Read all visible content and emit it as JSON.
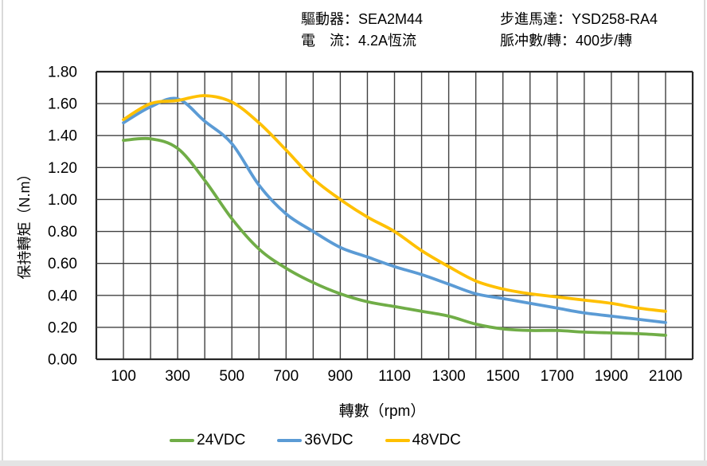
{
  "header": {
    "driver": "驅動器：SEA2M44",
    "current": "電　流：4.2A恆流",
    "motor": "步進馬達：YSD258-RA4",
    "pulse": "脈冲數/轉：400步/轉"
  },
  "chart_data": {
    "type": "line",
    "title": "",
    "xlabel": "轉數（rpm）",
    "ylabel": "保持轉矩（N.m）",
    "xlim": [
      0,
      2200
    ],
    "ylim": [
      0,
      1.8
    ],
    "x_gridline_step": 100,
    "y_gridline_step": 0.2,
    "grid": "on",
    "legend_position": "bottom",
    "x": [
      100,
      200,
      300,
      400,
      500,
      600,
      700,
      800,
      900,
      1000,
      1100,
      1200,
      1300,
      1400,
      1500,
      1600,
      1700,
      1800,
      1900,
      2000,
      2100
    ],
    "x_tick_labels": [
      "100",
      "300",
      "500",
      "700",
      "900",
      "1100",
      "1300",
      "1500",
      "1700",
      "1900",
      "2100"
    ],
    "y_tick_labels": [
      "0.00",
      "0.20",
      "0.40",
      "0.60",
      "0.80",
      "1.00",
      "1.20",
      "1.40",
      "1.60",
      "1.80"
    ],
    "series": [
      {
        "name": "24VDC",
        "color": "#70AD47",
        "values": [
          1.37,
          1.38,
          1.32,
          1.12,
          0.88,
          0.69,
          0.57,
          0.48,
          0.41,
          0.36,
          0.33,
          0.3,
          0.27,
          0.22,
          0.19,
          0.18,
          0.18,
          0.17,
          0.165,
          0.16,
          0.15
        ]
      },
      {
        "name": "36VDC",
        "color": "#5B9BD5",
        "values": [
          1.48,
          1.58,
          1.63,
          1.49,
          1.35,
          1.09,
          0.91,
          0.8,
          0.7,
          0.64,
          0.58,
          0.53,
          0.47,
          0.41,
          0.38,
          0.35,
          0.32,
          0.29,
          0.27,
          0.25,
          0.23
        ]
      },
      {
        "name": "48VDC",
        "color": "#FFC000",
        "values": [
          1.5,
          1.6,
          1.62,
          1.65,
          1.61,
          1.48,
          1.31,
          1.13,
          1.0,
          0.89,
          0.8,
          0.68,
          0.58,
          0.49,
          0.44,
          0.41,
          0.39,
          0.37,
          0.35,
          0.32,
          0.3
        ]
      }
    ],
    "style": {
      "grid_color": "#404040",
      "border_color": "#262626",
      "text_color": "#000000",
      "background": "#ffffff"
    }
  }
}
